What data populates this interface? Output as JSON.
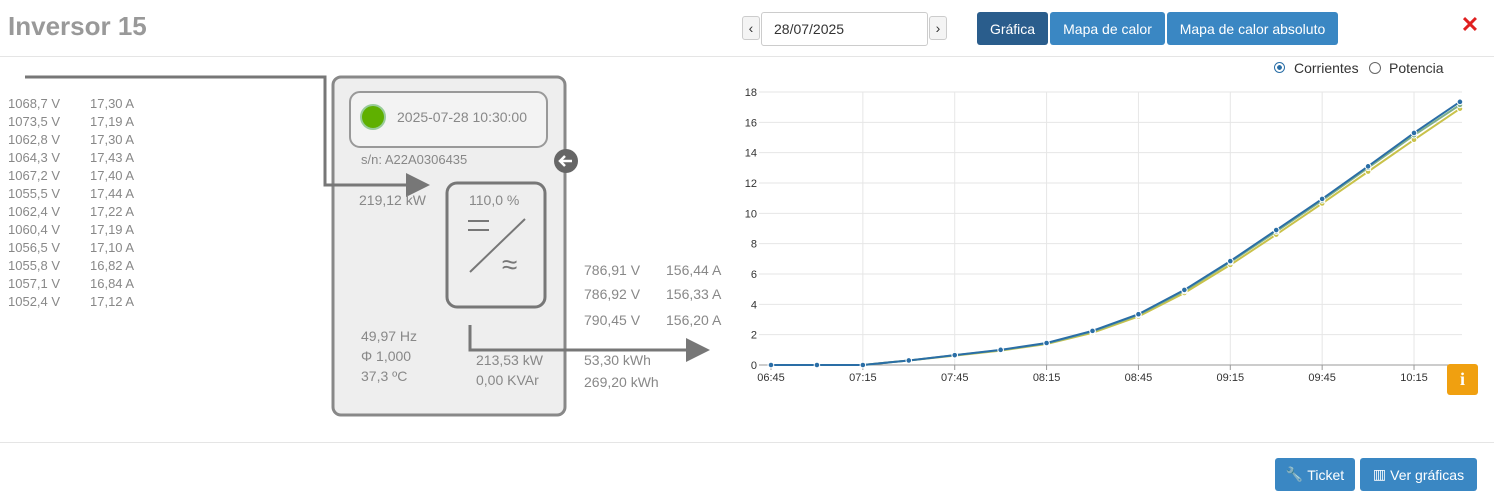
{
  "header": {
    "title": "Inversor 15",
    "date": "28/07/2025",
    "buttons": [
      "Gráfica",
      "Mapa de calor",
      "Mapa de calor absoluto"
    ]
  },
  "strings": {
    "rows": [
      [
        "1068,7 V",
        "17,30 A"
      ],
      [
        "1073,5 V",
        "17,19 A"
      ],
      [
        "1062,8 V",
        "17,30 A"
      ],
      [
        "1064,3 V",
        "17,43 A"
      ],
      [
        "1067,2 V",
        "17,40 A"
      ],
      [
        "1055,5 V",
        "17,44 A"
      ],
      [
        "1062,4 V",
        "17,22 A"
      ],
      [
        "1060,4 V",
        "17,19 A"
      ],
      [
        "1056,5 V",
        "17,10 A"
      ],
      [
        "1055,8 V",
        "16,82 A"
      ],
      [
        "1057,1 V",
        "16,84 A"
      ],
      [
        "1052,4 V",
        "17,12 A"
      ]
    ]
  },
  "inverter": {
    "timestamp": "2025-07-28 10:30:00",
    "serial": "s/n: A22A0306435",
    "dc_power": "219,12 kW",
    "load": "110,0 %",
    "frequency": "49,97 Hz",
    "power_factor": "Φ 1,000",
    "temperature": "37,3 ºC",
    "ac_power": "213,53 kW",
    "reactive": "0,00 KVAr"
  },
  "phases": {
    "rows": [
      [
        "786,91 V",
        "156,44 A"
      ],
      [
        "786,92 V",
        "156,33 A"
      ],
      [
        "790,45 V",
        "156,20 A"
      ]
    ]
  },
  "energy": [
    "53,30 kWh",
    "269,20 kWh"
  ],
  "chart_options": [
    "Corrientes",
    "Potencia"
  ],
  "chart_data": {
    "type": "line",
    "categories": [
      "06:45",
      null,
      "07:15",
      null,
      "07:45",
      null,
      "08:15",
      null,
      "08:45",
      null,
      "09:15",
      null,
      "09:45",
      null,
      "10:15",
      null
    ],
    "series": [
      {
        "color": "#c9c24a",
        "values": [
          0,
          0,
          0,
          0.3,
          0.62,
          0.95,
          1.38,
          2.12,
          3.2,
          4.75,
          6.6,
          8.6,
          10.65,
          12.75,
          14.85,
          16.9
        ]
      },
      {
        "color": "#7fb08a",
        "values": [
          0,
          0,
          0,
          0.3,
          0.64,
          0.98,
          1.42,
          2.2,
          3.3,
          4.88,
          6.78,
          8.8,
          10.85,
          13.0,
          15.15,
          17.15
        ]
      },
      {
        "color": "#2a6ea6",
        "values": [
          0,
          0,
          0,
          0.3,
          0.65,
          1.0,
          1.45,
          2.25,
          3.35,
          4.95,
          6.85,
          8.9,
          10.95,
          13.1,
          15.3,
          17.35
        ]
      }
    ],
    "ylim": [
      0,
      18
    ],
    "yticks": [
      0,
      2,
      4,
      6,
      8,
      10,
      12,
      14,
      16,
      18
    ],
    "grid": true
  },
  "footer": {
    "buttons": [
      "Ticket",
      "Ver gráficas"
    ]
  }
}
